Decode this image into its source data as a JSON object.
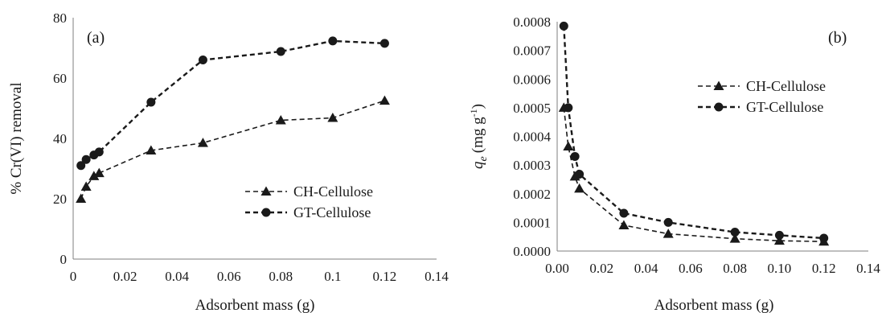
{
  "chart_data": [
    {
      "type": "line",
      "panel_label": "(a)",
      "xlabel": "Adsorbent mass (g)",
      "ylabel": "% Cr(VI) removal",
      "xlim": [
        0,
        0.14
      ],
      "ylim": [
        0,
        80
      ],
      "x_ticks": [
        "0",
        "0.02",
        "0.04",
        "0.06",
        "0.08",
        "0.1",
        "0.12",
        "0.14"
      ],
      "y_ticks": [
        "0",
        "20",
        "40",
        "60",
        "80"
      ],
      "grid": false,
      "legend_position": "bottom-right",
      "series": [
        {
          "name": "CH-Cellulose",
          "marker": "triangle",
          "x": [
            0.003,
            0.005,
            0.008,
            0.01,
            0.03,
            0.05,
            0.08,
            0.1,
            0.12
          ],
          "y": [
            20,
            24,
            27.5,
            28.5,
            36,
            38.5,
            46,
            46.8,
            52.5
          ]
        },
        {
          "name": "GT-Cellulose",
          "marker": "circle",
          "x": [
            0.003,
            0.005,
            0.008,
            0.01,
            0.03,
            0.05,
            0.08,
            0.1,
            0.12
          ],
          "y": [
            31,
            33,
            34.5,
            35.5,
            52,
            66,
            68.8,
            72.3,
            71.5
          ]
        }
      ]
    },
    {
      "type": "line",
      "panel_label": "(b)",
      "xlabel": "Adsorbent mass (g)",
      "ylabel_base": "q",
      "ylabel_sub": "e",
      "ylabel_unit": "(mg g",
      "ylabel_sup": "-1",
      "ylabel_close": ")",
      "xlim": [
        0,
        0.14
      ],
      "ylim": [
        0,
        0.0008
      ],
      "x_ticks": [
        "0.00",
        "0.02",
        "0.04",
        "0.06",
        "0.08",
        "0.10",
        "0.12",
        "0.14"
      ],
      "y_ticks": [
        "0.0000",
        "0.0001",
        "0.0002",
        "0.0003",
        "0.0004",
        "0.0005",
        "0.0006",
        "0.0007",
        "0.0008"
      ],
      "grid": false,
      "legend_position": "top-right",
      "series": [
        {
          "name": "CH-Cellulose",
          "marker": "triangle",
          "x": [
            0.003,
            0.005,
            0.008,
            0.01,
            0.03,
            0.05,
            0.08,
            0.1,
            0.12
          ],
          "y": [
            0.0005,
            0.000365,
            0.00026,
            0.000218,
            9e-05,
            6e-05,
            4.3e-05,
            3.6e-05,
            3.3e-05
          ]
        },
        {
          "name": "GT-Cellulose",
          "marker": "circle",
          "x": [
            0.003,
            0.005,
            0.008,
            0.01,
            0.03,
            0.05,
            0.08,
            0.1,
            0.12
          ],
          "y": [
            0.000785,
            0.0005,
            0.00033,
            0.000268,
            0.000132,
            0.0001,
            6.6e-05,
            5.5e-05,
            4.5e-05
          ]
        }
      ]
    }
  ],
  "colors": {
    "line": "#1a1a1a",
    "axis": "#7f7f7f"
  }
}
